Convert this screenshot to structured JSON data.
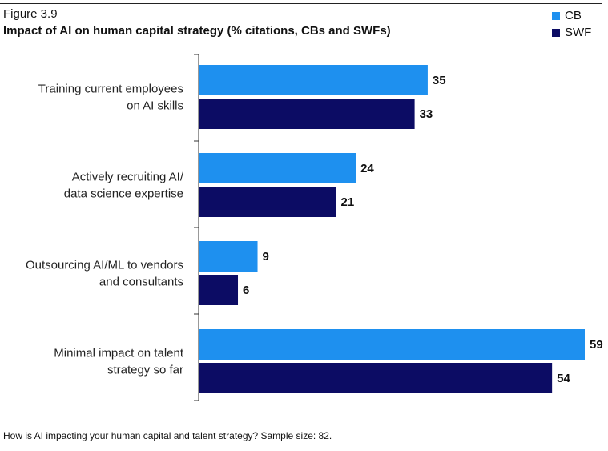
{
  "figure_label": "Figure 3.9",
  "footnote": "How is AI impacting your human capital and talent strategy? Sample size: 82.",
  "colors": {
    "CB": "#1e90ef",
    "SWF": "#0c0c64"
  },
  "chart_data": {
    "type": "bar",
    "orientation": "horizontal",
    "title": "Impact of AI on human capital strategy (% citations, CBs and SWFs)",
    "categories": [
      [
        "Training current employees",
        "on AI skills"
      ],
      [
        "Actively recruiting AI/",
        "data science expertise"
      ],
      [
        "Outsourcing AI/ML to vendors",
        "and consultants"
      ],
      [
        "Minimal impact on talent",
        "strategy so far"
      ]
    ],
    "series": [
      {
        "name": "CB",
        "values": [
          35,
          24,
          9,
          59
        ]
      },
      {
        "name": "SWF",
        "values": [
          33,
          21,
          6,
          54
        ]
      }
    ],
    "xlim": [
      0,
      59
    ],
    "grid": false,
    "legend": "top-right"
  }
}
